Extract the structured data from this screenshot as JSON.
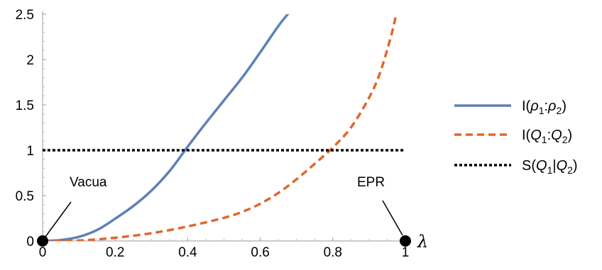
{
  "chart_data": {
    "type": "line",
    "title": "",
    "xlabel": "λ",
    "ylabel": "",
    "xlim": [
      0,
      1
    ],
    "ylim": [
      0,
      2.5
    ],
    "grid": false,
    "legend_placement": "right",
    "x_ticks": [
      {
        "value": 0,
        "label": "0"
      },
      {
        "value": 0.2,
        "label": "0.2"
      },
      {
        "value": 0.4,
        "label": "0.4"
      },
      {
        "value": 0.6,
        "label": "0.6"
      },
      {
        "value": 0.8,
        "label": "0.8"
      },
      {
        "value": 1,
        "label": "1"
      }
    ],
    "y_ticks": [
      {
        "value": 0,
        "label": "0"
      },
      {
        "value": 0.5,
        "label": "0.5"
      },
      {
        "value": 1,
        "label": "1"
      },
      {
        "value": 1.5,
        "label": "1.5"
      },
      {
        "value": 2,
        "label": "2"
      },
      {
        "value": 2.5,
        "label": "2.5"
      }
    ],
    "series": [
      {
        "name_prefix": "I(",
        "name_a": "ρ",
        "name_a_sub": "1",
        "name_sep": ":",
        "name_b": "ρ",
        "name_b_sub": "2",
        "name_suffix": ")",
        "color": "#5e81b5",
        "dash": "solid",
        "x": [
          0,
          0.05,
          0.1,
          0.15,
          0.2,
          0.25,
          0.3,
          0.35,
          0.4,
          0.45,
          0.5,
          0.55,
          0.6,
          0.65,
          0.68
        ],
        "y": [
          0,
          0.01,
          0.045,
          0.12,
          0.245,
          0.385,
          0.555,
          0.77,
          1.04,
          1.3,
          1.55,
          1.8,
          2.08,
          2.37,
          2.52
        ]
      },
      {
        "name_prefix": "I(",
        "name_a": "Q",
        "name_a_sub": "1",
        "name_sep": ":",
        "name_b": "Q",
        "name_b_sub": "2",
        "name_suffix": ")",
        "color": "#e1672b",
        "dash": "dashed",
        "x": [
          0,
          0.1,
          0.2,
          0.3,
          0.4,
          0.5,
          0.55,
          0.6,
          0.65,
          0.7,
          0.75,
          0.8,
          0.85,
          0.9,
          0.93,
          0.96,
          0.975
        ],
        "y": [
          0,
          0.005,
          0.035,
          0.085,
          0.16,
          0.255,
          0.32,
          0.41,
          0.53,
          0.68,
          0.85,
          1.03,
          1.25,
          1.58,
          1.85,
          2.25,
          2.5
        ]
      },
      {
        "name_prefix": "S(",
        "name_a": "Q",
        "name_a_sub": "1",
        "name_sep": "|",
        "name_b": "Q",
        "name_b_sub": "2",
        "name_suffix": ")",
        "color": "#000000",
        "dash": "dotted",
        "x": [
          0,
          1
        ],
        "y": [
          1,
          1
        ]
      }
    ],
    "annotations": [
      {
        "text": "Vacua",
        "x": 0,
        "y": 0
      },
      {
        "text": "EPR",
        "x": 1,
        "y": 0
      }
    ]
  }
}
